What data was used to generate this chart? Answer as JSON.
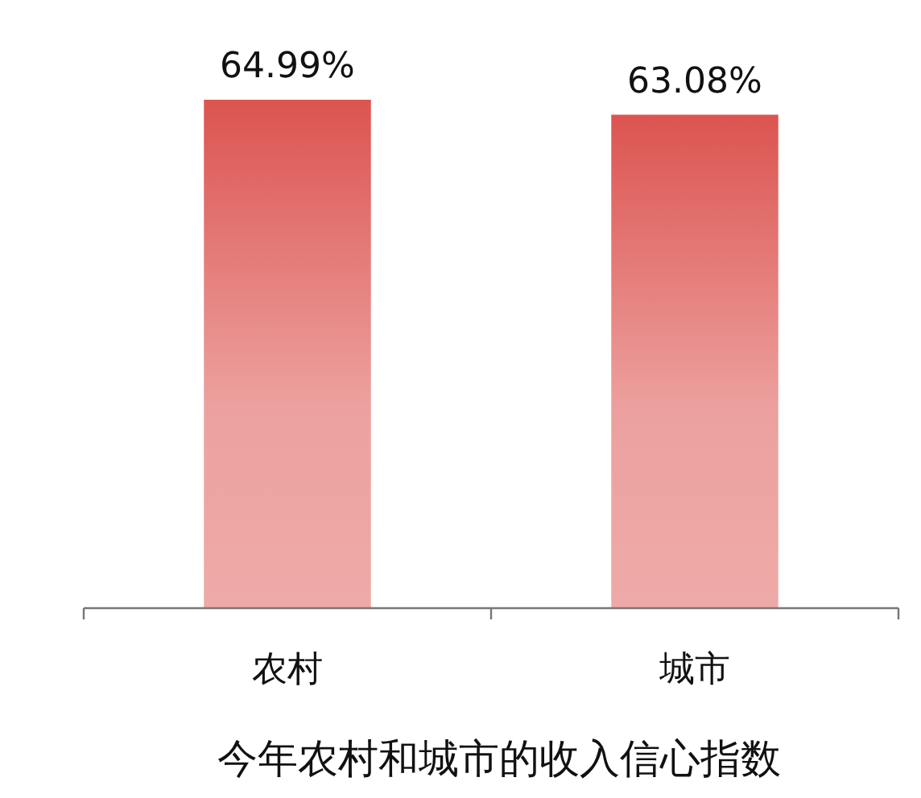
{
  "chart_data": {
    "type": "bar",
    "title": "今年农村和城市的收入信心指数",
    "categories": [
      "农村",
      "城市"
    ],
    "values": [
      64.99,
      63.08
    ],
    "value_labels": [
      "64.99%",
      "63.08%"
    ],
    "color": "#dc5450",
    "tick_labels": "x"
  }
}
